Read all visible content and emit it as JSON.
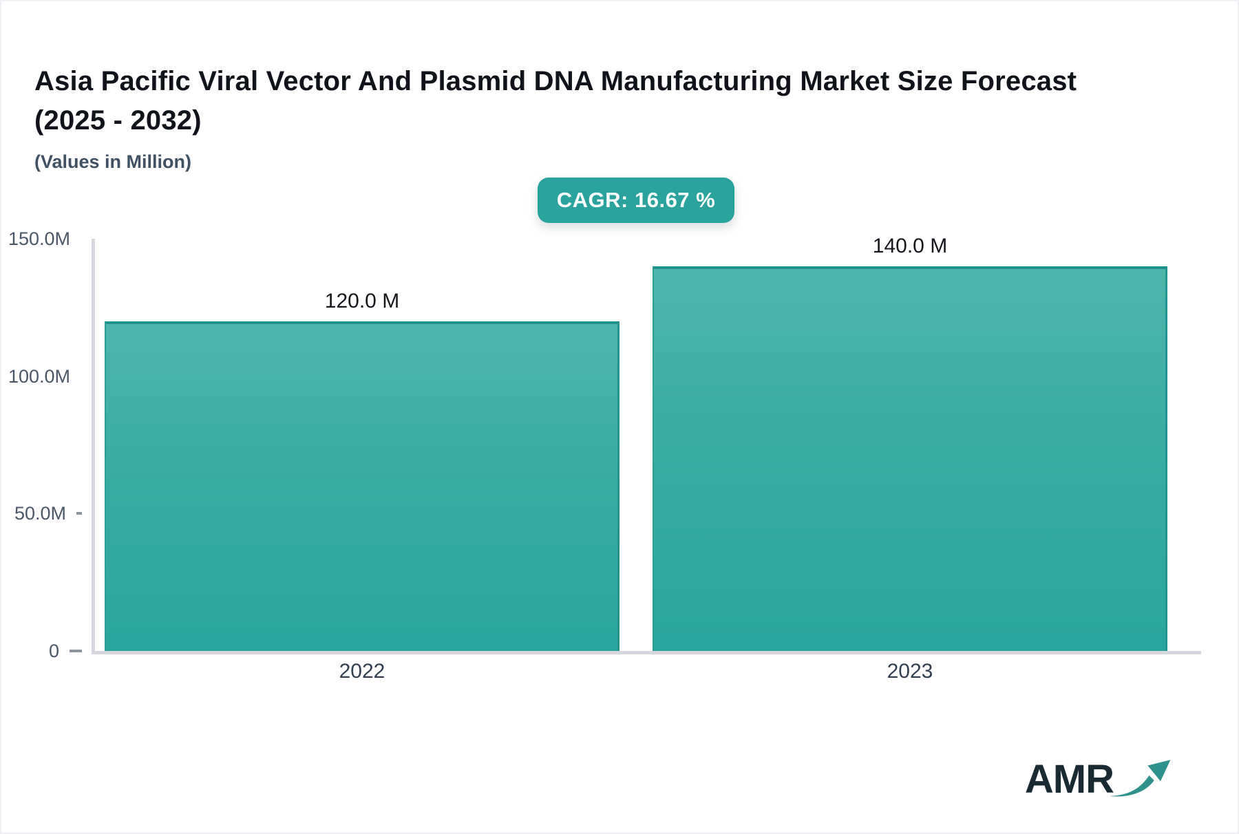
{
  "header": {
    "title_line1": "Asia Pacific Viral Vector And Plasmid DNA Manufacturing Market Size Forecast",
    "title_line2": "(2025 - 2032)",
    "subtitle": "(Values in Million)",
    "cagr_label": "CAGR: 16.67 %"
  },
  "chart_data": {
    "type": "bar",
    "title": "Asia Pacific Viral Vector And Plasmid DNA Manufacturing Market Size Forecast (2025 - 2032)",
    "subtitle": "(Values in Million)",
    "cagr_percent": 16.67,
    "categories": [
      "2022",
      "2023"
    ],
    "values": [
      120.0,
      140.0
    ],
    "bar_labels": [
      "120.0 M",
      "140.0 M"
    ],
    "xlabel": "",
    "ylabel": "",
    "ylim": [
      0,
      150
    ],
    "yticks": [
      {
        "value": 0,
        "label": "0"
      },
      {
        "value": 50,
        "label": "50.0M"
      },
      {
        "value": 100,
        "label": "100.0M"
      },
      {
        "value": 150,
        "label": "150.0M"
      }
    ],
    "grid": false,
    "legend": false,
    "bar_color_top": "#4fb5ab",
    "bar_color_bottom": "#2aa69c",
    "bar_border_color": "#1d928c"
  },
  "footer": {
    "logo_text": "AMR"
  },
  "colors": {
    "accent_teal": "#2aa39f",
    "axis_line": "#d6d7df",
    "title_text": "#10131a",
    "subtitle_text": "#3f5162",
    "axis_label_text": "#4b5767",
    "category_text": "#323f4f",
    "logo_text": "#192a33",
    "logo_arrow": "#2f918b"
  }
}
